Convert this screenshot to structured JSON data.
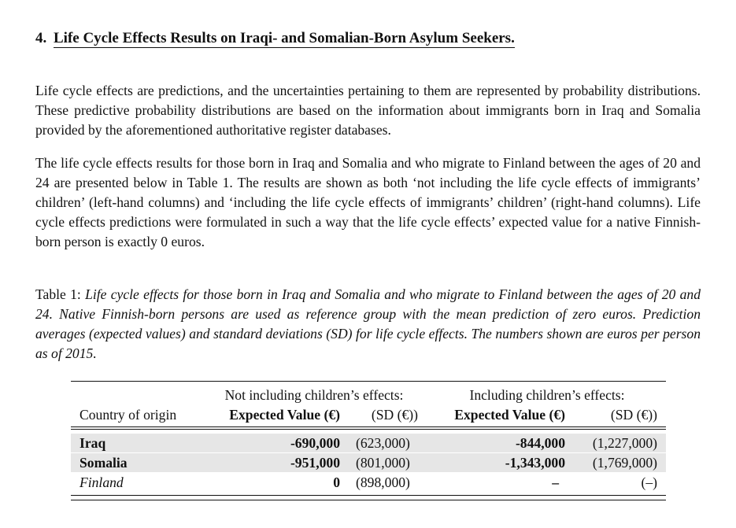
{
  "header": {
    "section_number": "4.",
    "title": "Life Cycle Effects Results on Iraqi- and Somalian-Born Asylum Seekers."
  },
  "paragraphs": [
    "Life cycle effects are predictions, and the uncertainties pertaining to them are represented by probability distributions. These predictive probability distributions are based on the information about immigrants born in Iraq and Somalia provided by the aforementioned authoritative register databases.",
    "The life cycle effects results for those born in Iraq and Somalia and who migrate to Finland between the ages of 20 and 24 are presented below in Table 1. The results are shown as both ‘not including the life cycle effects of immigrants’ children’ (left-hand columns) and ‘including the life cycle effects of immigrants’ children’ (right-hand columns). Life cycle effects predictions were formulated in such a way that the life cycle effects’ expected value for a native Finnish-born person is exactly 0 euros."
  ],
  "table": {
    "caption_label": "Table 1:",
    "caption": "Life cycle effects for those born in Iraq and Somalia and who migrate to Finland between the ages of 20 and 24. Native Finnish-born persons are used as reference group with the mean prediction of zero euros. Prediction averages (expected values) and standard deviations (SD) for life cycle effects. The numbers shown are euros per person as of 2015.",
    "group_headers": [
      "Not including children’s effects:",
      "Including children’s effects:"
    ],
    "columns": [
      "Country of origin",
      "Expected Value (€)",
      "(SD (€))",
      "Expected Value (€)",
      "(SD (€))"
    ],
    "rows": [
      {
        "cells": [
          "Iraq",
          "-690,000",
          "(623,000)",
          "-844,000",
          "(1,227,000)"
        ]
      },
      {
        "cells": [
          "Somalia",
          "-951,000",
          "(801,000)",
          "-1,343,000",
          "(1,769,000)"
        ]
      },
      {
        "cells": [
          "Finland",
          "0",
          "(898,000)",
          "–",
          "(–)"
        ]
      }
    ]
  }
}
